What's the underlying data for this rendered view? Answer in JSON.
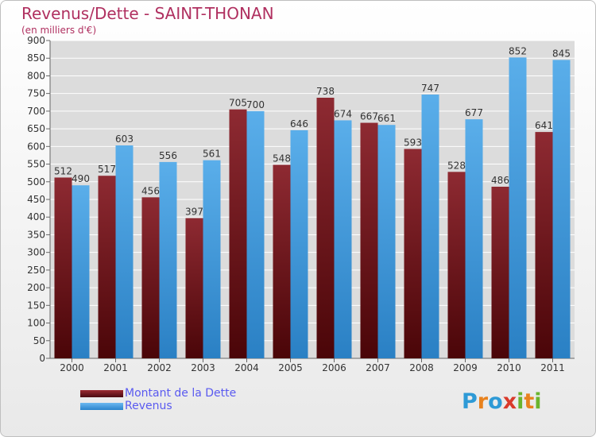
{
  "chart_data": {
    "type": "bar",
    "title": "Revenus/Dette - SAINT-THONAN",
    "subtitle": "(en milliers d'€)",
    "categories": [
      "2000",
      "2001",
      "2002",
      "2003",
      "2004",
      "2005",
      "2006",
      "2007",
      "2008",
      "2009",
      "2010",
      "2011"
    ],
    "series": [
      {
        "name": "Montant de la Dette",
        "color": "#7a1c24",
        "values": [
          512,
          517,
          456,
          397,
          705,
          548,
          738,
          667,
          593,
          528,
          486,
          641
        ]
      },
      {
        "name": "Revenus",
        "color": "#4aa3e6",
        "values": [
          490,
          603,
          556,
          561,
          700,
          646,
          674,
          661,
          747,
          677,
          852,
          845
        ]
      }
    ],
    "ylim": [
      0,
      900
    ],
    "yticks": [
      "0",
      "50",
      "100",
      "150",
      "200",
      "250",
      "300",
      "350",
      "400",
      "450",
      "500",
      "550",
      "600",
      "650",
      "700",
      "750",
      "800",
      "850",
      "900"
    ],
    "grid": true,
    "legend_position": "bottom-left"
  },
  "logo": {
    "letters": [
      {
        "ch": "P",
        "color": "#2e9ad6"
      },
      {
        "ch": "r",
        "color": "#e8821e"
      },
      {
        "ch": "o",
        "color": "#2e9ad6"
      },
      {
        "ch": "x",
        "color": "#d93a2b"
      },
      {
        "ch": "i",
        "color": "#6ab42d"
      },
      {
        "ch": "t",
        "color": "#e8821e"
      },
      {
        "ch": "i",
        "color": "#6ab42d"
      }
    ]
  }
}
